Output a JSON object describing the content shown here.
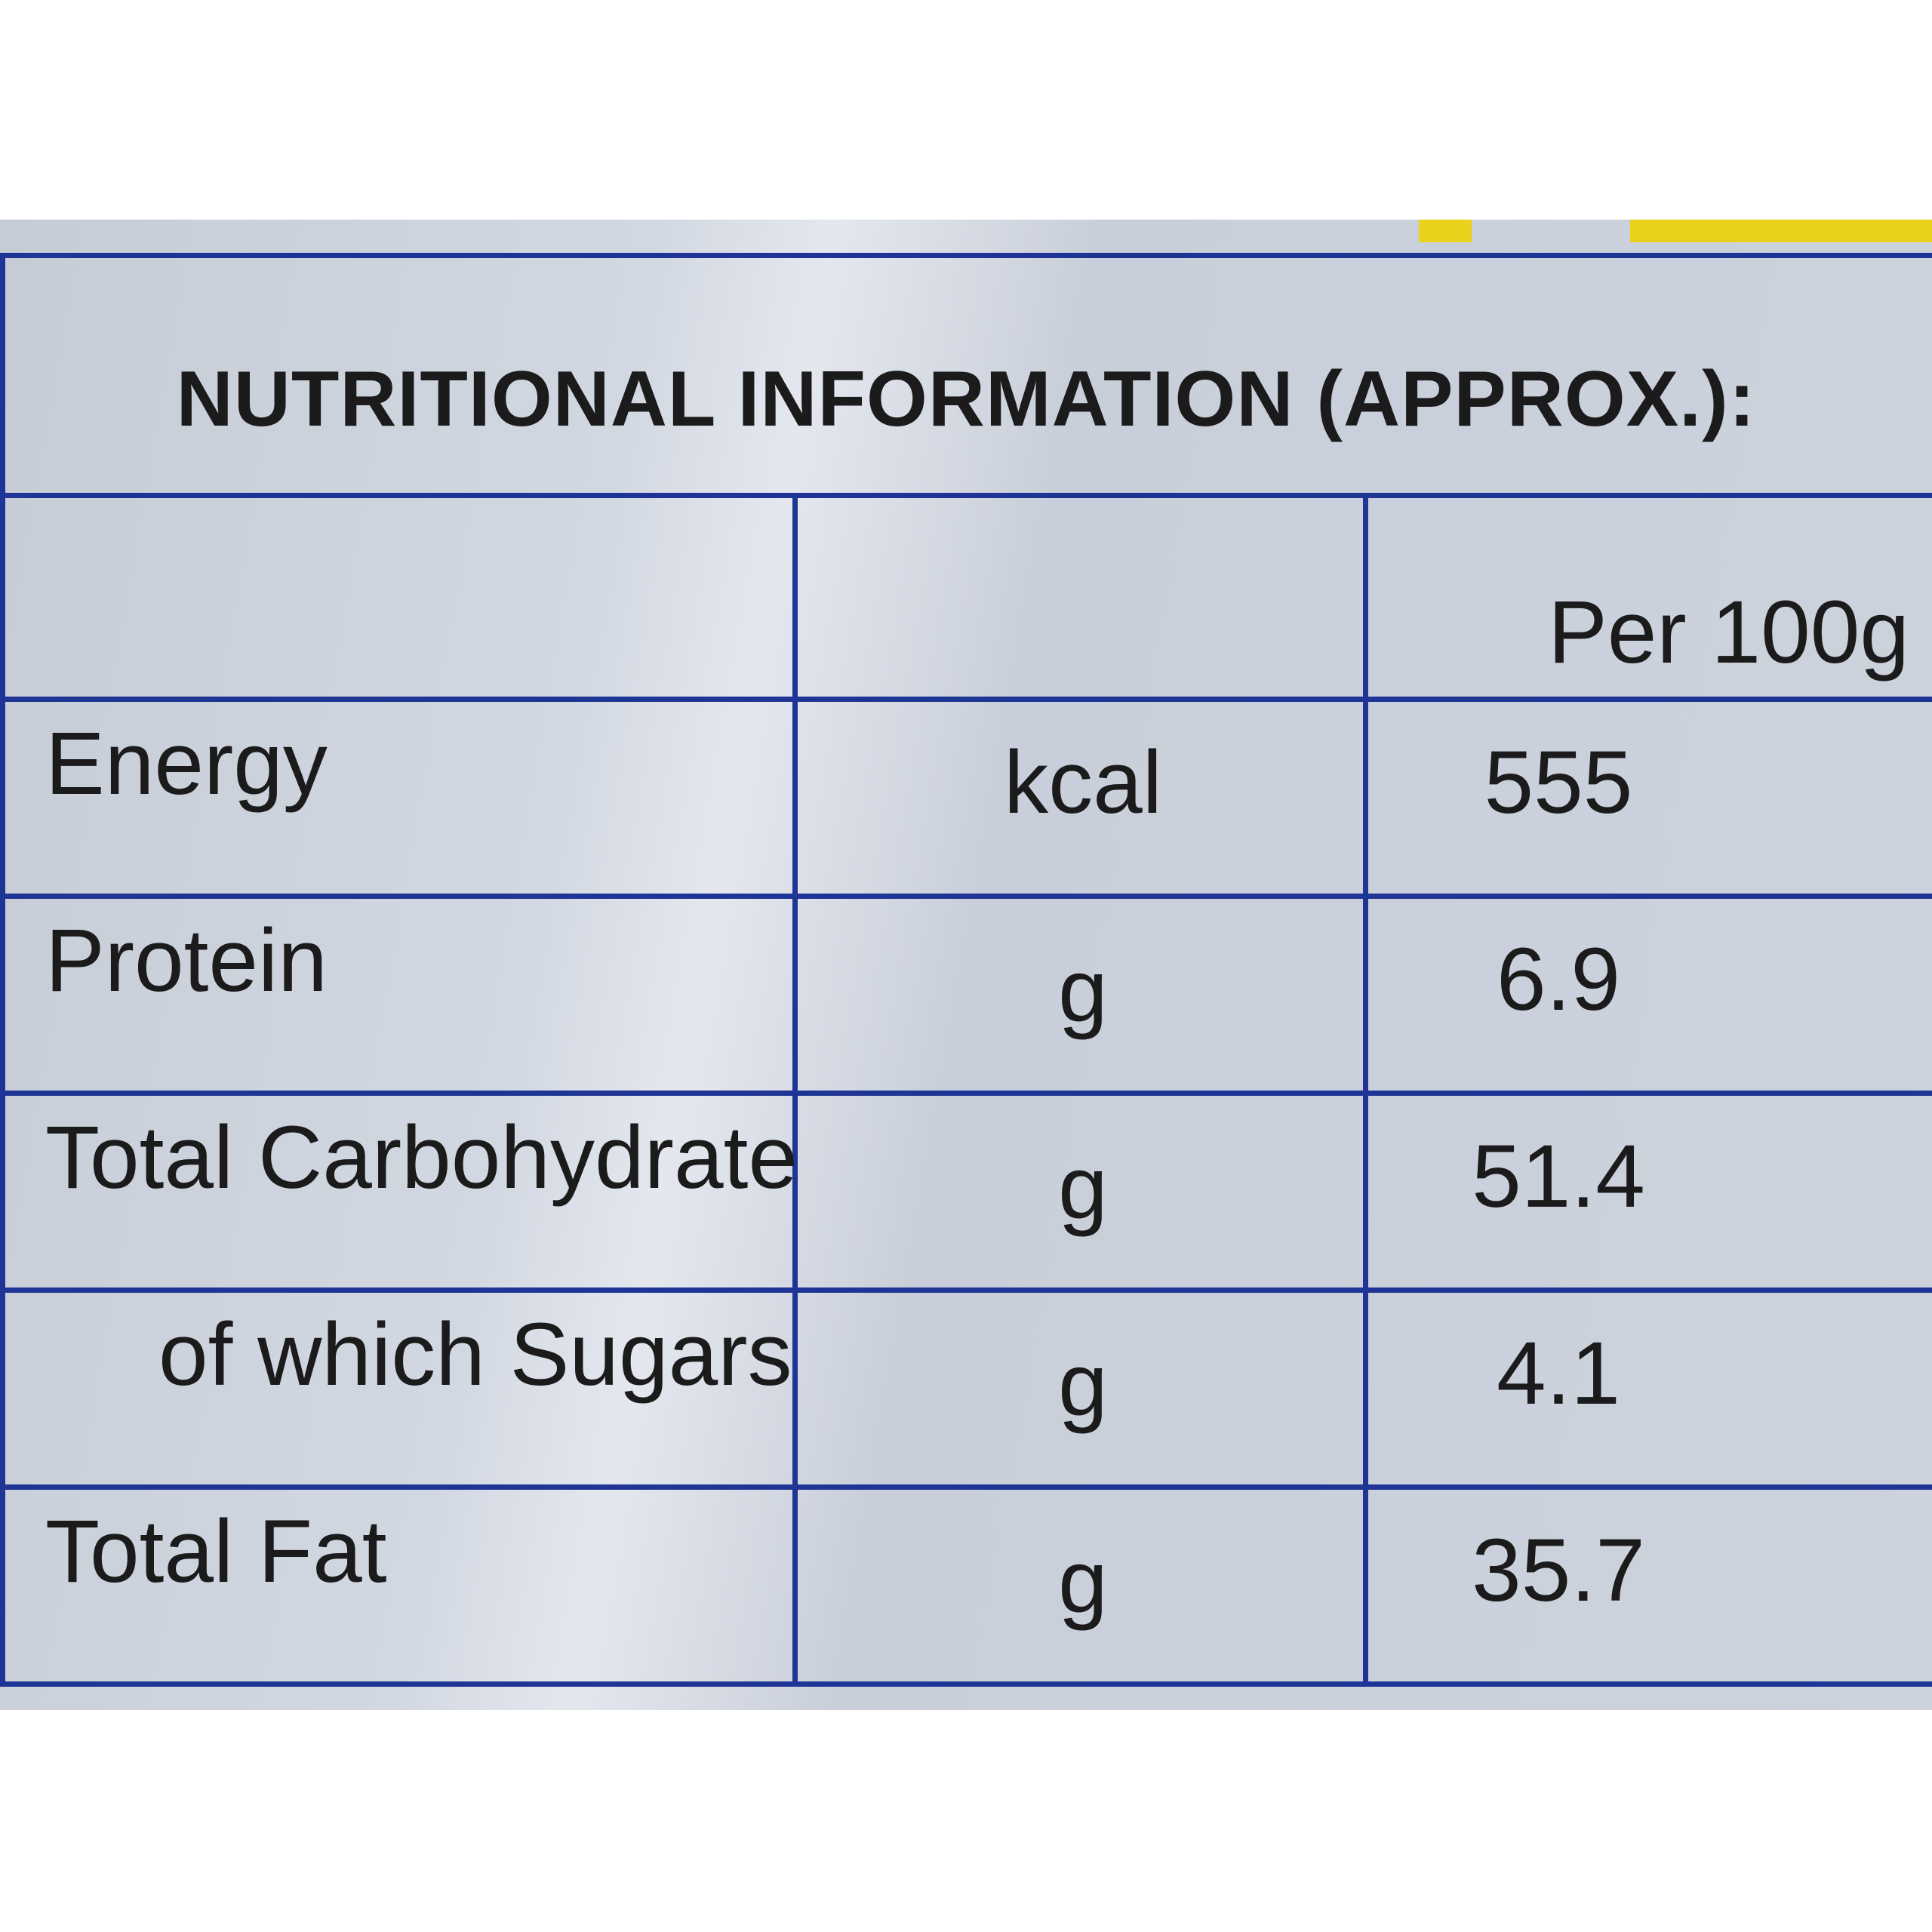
{
  "title": "NUTRITIONAL INFORMATION (APPROX.):",
  "table": {
    "header": {
      "per": "Per 100g"
    },
    "rows": [
      [
        "Energy",
        "kcal",
        "555"
      ],
      [
        "Protein",
        "g",
        "6.9"
      ],
      [
        "Total Carbohydrate",
        "g",
        "51.4"
      ],
      [
        "of which Sugars",
        "g",
        "4.1"
      ],
      [
        "Total Fat",
        "g",
        "35.7"
      ]
    ]
  }
}
